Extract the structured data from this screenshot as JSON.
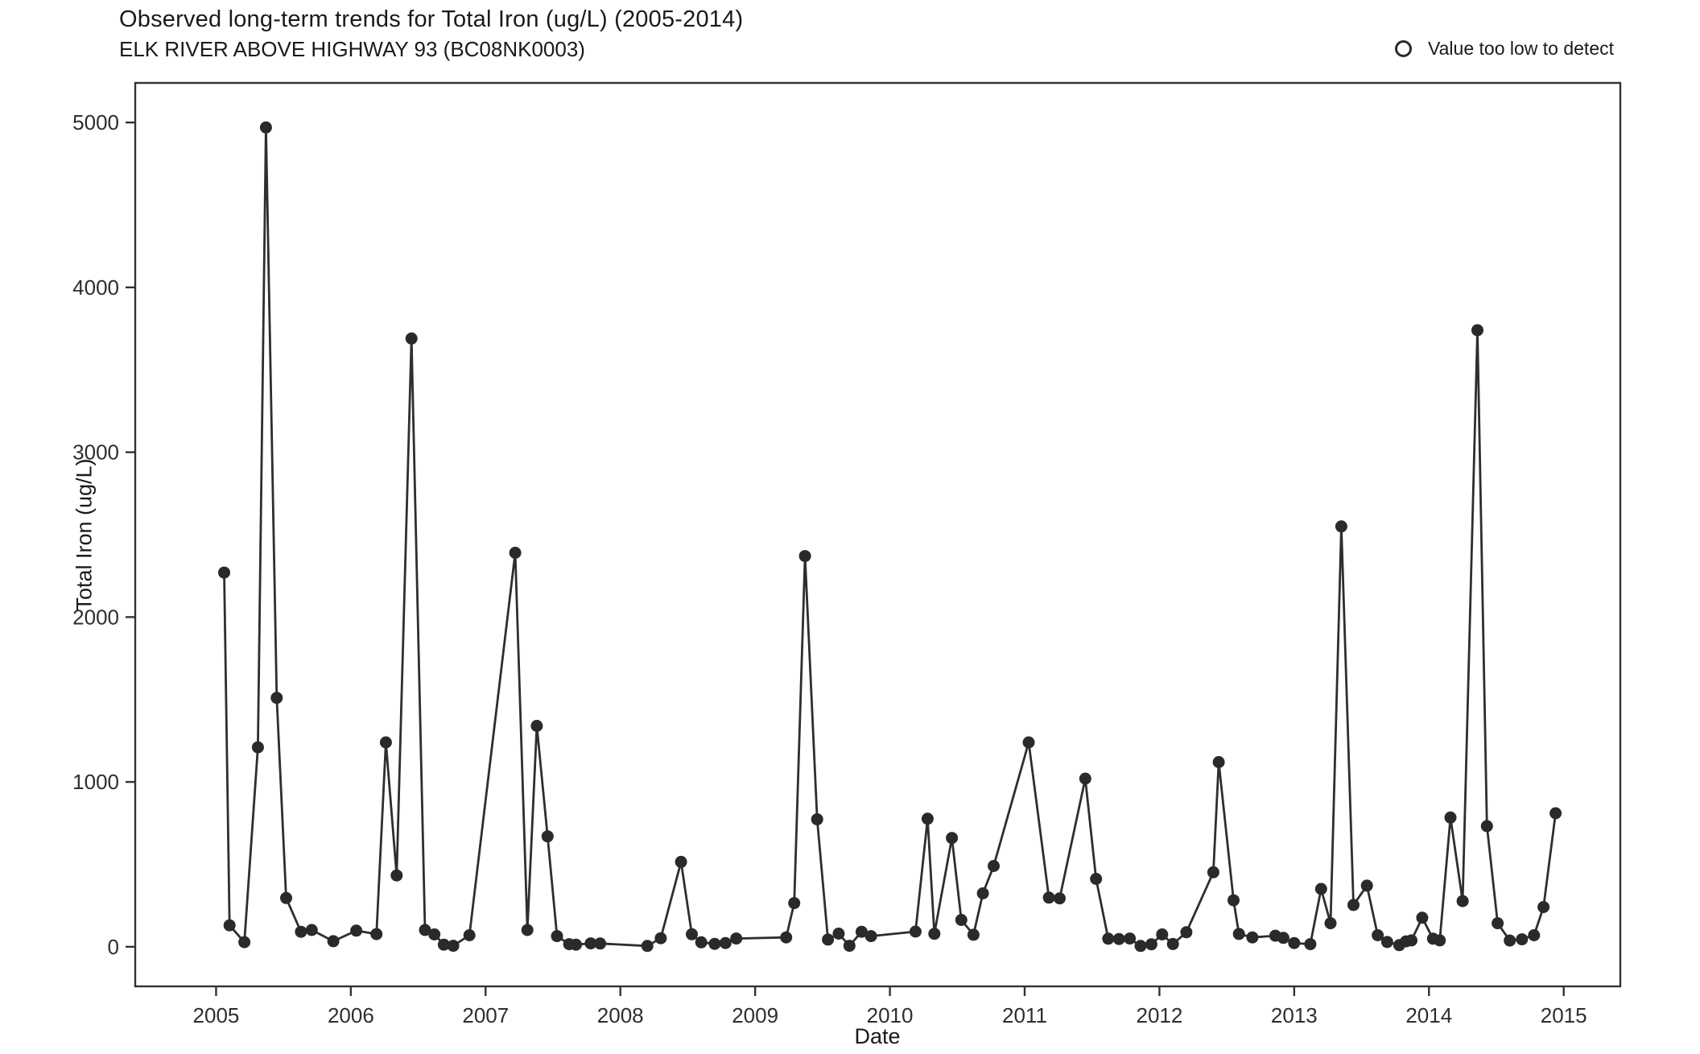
{
  "header": {
    "title": "Observed long-term trends for Total Iron (ug/L) (2005-2014)",
    "subtitle": "ELK RIVER ABOVE HIGHWAY 93 (BC08NK0003)"
  },
  "colors": {
    "point": "#2a2a2a",
    "line": "#2e2e2e",
    "axis": "#333333",
    "tick_text": "#2e2e2e",
    "background": "#ffffff"
  },
  "chart_data": {
    "type": "line",
    "title": "Observed long-term trends for Total Iron (ug/L) (2005-2014)",
    "subtitle": "ELK RIVER ABOVE HIGHWAY 93 (BC08NK0003)",
    "xlabel": "Date",
    "ylabel": "Total Iron (ug/L)",
    "grid": false,
    "xlim": [
      2004.4,
      2015.42
    ],
    "ylim": [
      -240,
      5240
    ],
    "x_ticks": [
      2005,
      2006,
      2007,
      2008,
      2009,
      2010,
      2011,
      2012,
      2013,
      2014,
      2015
    ],
    "y_ticks": [
      0,
      1000,
      2000,
      3000,
      4000,
      5000
    ],
    "legend": {
      "position": "top-right",
      "entries": [
        {
          "marker": "open-circle",
          "label": "Value too low to detect"
        }
      ]
    },
    "series": [
      {
        "name": "Total Iron (ug/L)",
        "marker": "filled-circle",
        "points": [
          [
            2005.06,
            2270
          ],
          [
            2005.1,
            130
          ],
          [
            2005.21,
            28
          ],
          [
            2005.31,
            1210
          ],
          [
            2005.37,
            4970
          ],
          [
            2005.45,
            1510
          ],
          [
            2005.52,
            296
          ],
          [
            2005.63,
            91
          ],
          [
            2005.71,
            102
          ],
          [
            2005.87,
            34
          ],
          [
            2006.04,
            98
          ],
          [
            2006.19,
            77
          ],
          [
            2006.26,
            1240
          ],
          [
            2006.34,
            433
          ],
          [
            2006.45,
            3690
          ],
          [
            2006.55,
            102
          ],
          [
            2006.62,
            75
          ],
          [
            2006.69,
            13
          ],
          [
            2006.76,
            6
          ],
          [
            2006.88,
            70
          ],
          [
            2007.22,
            2390
          ],
          [
            2007.31,
            102
          ],
          [
            2007.38,
            1340
          ],
          [
            2007.46,
            670
          ],
          [
            2007.53,
            65
          ],
          [
            2007.62,
            16
          ],
          [
            2007.67,
            13
          ],
          [
            2007.78,
            21
          ],
          [
            2007.85,
            20
          ],
          [
            2008.2,
            5
          ],
          [
            2008.3,
            52
          ],
          [
            2008.45,
            515
          ],
          [
            2008.53,
            76
          ],
          [
            2008.6,
            27
          ],
          [
            2008.7,
            18
          ],
          [
            2008.78,
            23
          ],
          [
            2008.86,
            50
          ],
          [
            2009.23,
            57
          ],
          [
            2009.29,
            265
          ],
          [
            2009.37,
            2370
          ],
          [
            2009.46,
            773
          ],
          [
            2009.54,
            44
          ],
          [
            2009.62,
            80
          ],
          [
            2009.7,
            6
          ],
          [
            2009.79,
            91
          ],
          [
            2009.86,
            65
          ],
          [
            2010.19,
            92
          ],
          [
            2010.28,
            777
          ],
          [
            2010.33,
            79
          ],
          [
            2010.46,
            660
          ],
          [
            2010.53,
            163
          ],
          [
            2010.62,
            73
          ],
          [
            2010.69,
            324
          ],
          [
            2010.77,
            490
          ],
          [
            2011.03,
            1240
          ],
          [
            2011.18,
            298
          ],
          [
            2011.26,
            294
          ],
          [
            2011.45,
            1020
          ],
          [
            2011.53,
            412
          ],
          [
            2011.62,
            49
          ],
          [
            2011.7,
            47
          ],
          [
            2011.78,
            50
          ],
          [
            2011.86,
            5
          ],
          [
            2011.94,
            15
          ],
          [
            2012.02,
            75
          ],
          [
            2012.1,
            17
          ],
          [
            2012.2,
            88
          ],
          [
            2012.4,
            452
          ],
          [
            2012.44,
            1120
          ],
          [
            2012.55,
            282
          ],
          [
            2012.59,
            78
          ],
          [
            2012.69,
            57
          ],
          [
            2012.86,
            67
          ],
          [
            2012.92,
            54
          ],
          [
            2013.0,
            23
          ],
          [
            2013.12,
            16
          ],
          [
            2013.2,
            351
          ],
          [
            2013.27,
            143
          ],
          [
            2013.35,
            2550
          ],
          [
            2013.44,
            254
          ],
          [
            2013.54,
            371
          ],
          [
            2013.62,
            70
          ],
          [
            2013.69,
            29
          ],
          [
            2013.78,
            10
          ],
          [
            2013.83,
            33
          ],
          [
            2013.87,
            39
          ],
          [
            2013.95,
            176
          ],
          [
            2014.03,
            49
          ],
          [
            2014.08,
            39
          ],
          [
            2014.16,
            784
          ],
          [
            2014.25,
            277
          ],
          [
            2014.36,
            3740
          ],
          [
            2014.43,
            732
          ],
          [
            2014.51,
            143
          ],
          [
            2014.6,
            38
          ],
          [
            2014.69,
            45
          ],
          [
            2014.78,
            70
          ],
          [
            2014.85,
            241
          ],
          [
            2014.94,
            810
          ]
        ]
      }
    ]
  }
}
